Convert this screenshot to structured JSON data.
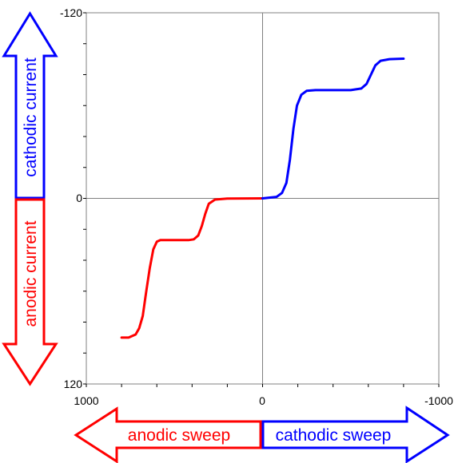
{
  "chart_data": {
    "type": "line",
    "title": "",
    "xlabel": "",
    "ylabel": "",
    "xlim": [
      1000,
      -1000
    ],
    "ylim": [
      -120,
      120
    ],
    "x_ticks": [
      "1000",
      "0",
      "-1000"
    ],
    "y_ticks": [
      "-120",
      "0",
      "120"
    ],
    "grid": false,
    "series": [
      {
        "color": "#ff0000",
        "points": [
          [
            800,
            90
          ],
          [
            760,
            90
          ],
          [
            720,
            88
          ],
          [
            700,
            84
          ],
          [
            680,
            76
          ],
          [
            660,
            60
          ],
          [
            640,
            45
          ],
          [
            620,
            33
          ],
          [
            600,
            28
          ],
          [
            580,
            27
          ],
          [
            520,
            27
          ],
          [
            460,
            27
          ],
          [
            420,
            27
          ],
          [
            390,
            26.5
          ],
          [
            365,
            24
          ],
          [
            345,
            18
          ],
          [
            325,
            10
          ],
          [
            305,
            3.5
          ],
          [
            270,
            0.8
          ],
          [
            200,
            0.1
          ],
          [
            0,
            0
          ]
        ]
      },
      {
        "color": "#0000ff",
        "points": [
          [
            0,
            0
          ],
          [
            -80,
            -1
          ],
          [
            -110,
            -3.5
          ],
          [
            -135,
            -10
          ],
          [
            -155,
            -25
          ],
          [
            -175,
            -45
          ],
          [
            -195,
            -60
          ],
          [
            -220,
            -67
          ],
          [
            -250,
            -69.5
          ],
          [
            -300,
            -70
          ],
          [
            -400,
            -70
          ],
          [
            -500,
            -70
          ],
          [
            -560,
            -71
          ],
          [
            -590,
            -74
          ],
          [
            -615,
            -80
          ],
          [
            -640,
            -86
          ],
          [
            -670,
            -89
          ],
          [
            -720,
            -90
          ],
          [
            -800,
            -90.3
          ]
        ]
      }
    ],
    "annotations": {
      "y_arrow_up_label": "cathodic current",
      "y_arrow_down_label": "anodic current",
      "x_arrow_left_label": "anodic sweep",
      "x_arrow_right_label": "cathodic sweep",
      "blue": "#0000ff",
      "red": "#ff0000"
    }
  }
}
